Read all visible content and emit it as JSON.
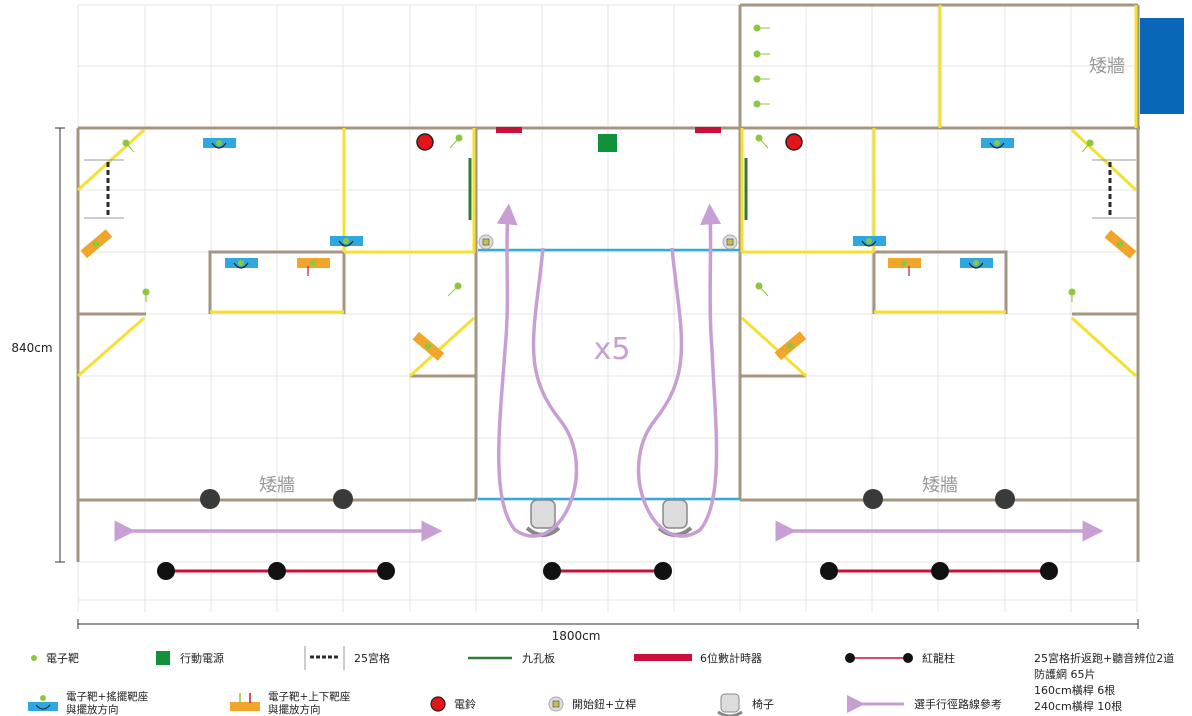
{
  "dimensions": {
    "height_label": "840cm",
    "width_label": "1800cm"
  },
  "zones": {
    "low_wall_left": "矮牆",
    "low_wall_right": "矮牆",
    "low_wall_top": "矮牆"
  },
  "center": {
    "repeat_label": "x5"
  },
  "legend": {
    "electronic_target": "電子靶",
    "mobile_power": "行動電源",
    "grid_25": "25宮格",
    "nine_hole_board": "九孔板",
    "timer_6digit": "6位數計時器",
    "red_rope_post": "紅龍柱",
    "swing_target_line1": "電子靶+搖擺靶座",
    "swing_target_line2": "與擺放方向",
    "updown_target_line1": "電子靶+上下靶座",
    "updown_target_line2": "與擺放方向",
    "bell": "電鈴",
    "start_button": "開始鈕+立桿",
    "chair": "椅子",
    "player_route": "選手行徑路線參考"
  },
  "notes": [
    "25宮格折返跑+聽音辨位2道",
    "防護網 65片",
    "160cm橫桿 6根",
    "240cm橫桿 10根"
  ],
  "colors": {
    "wall": "#a49681",
    "yellow_line": "#f5e030",
    "blue_line": "#34a9dd",
    "route": "#c79fd4",
    "red": "#c8103a",
    "green_power": "#11913e",
    "bell_red": "#e4141b",
    "target_green": "#8dc63f",
    "swing_base": "#2fa8df",
    "updown_base": "#f0a62a",
    "blue_block": "#0a67b8",
    "grid": "#e4e4e4"
  }
}
